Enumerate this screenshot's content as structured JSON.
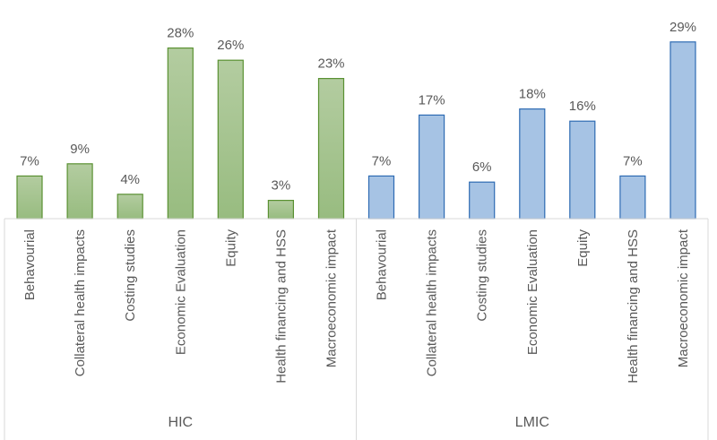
{
  "chart_data": {
    "type": "bar",
    "title": "",
    "xlabel": "",
    "ylabel": "",
    "ylim": [
      0,
      30
    ],
    "grid": false,
    "legend": "none",
    "categories": [
      "Behavourial",
      "Collateral health impacts",
      "Costing studies",
      "Economic Evaluation",
      "Equity",
      "Health financing and HSS",
      "Macroeconomic impact"
    ],
    "groups": [
      {
        "name": "HIC",
        "fill": "#b3cca0",
        "fill_dark": "#98bc80",
        "stroke": "#5a9132",
        "values": [
          7,
          9,
          4,
          28,
          26,
          3,
          23
        ],
        "labels": [
          "7%",
          "9%",
          "4%",
          "28%",
          "26%",
          "3%",
          "23%"
        ]
      },
      {
        "name": "LMIC",
        "fill": "#a6c3e4",
        "fill_dark": "#a6c3e4",
        "stroke": "#2e6bb3",
        "values": [
          7,
          17,
          6,
          18,
          16,
          7,
          29
        ],
        "labels": [
          "7%",
          "17%",
          "6%",
          "18%",
          "16%",
          "7%",
          "29%"
        ]
      }
    ]
  }
}
